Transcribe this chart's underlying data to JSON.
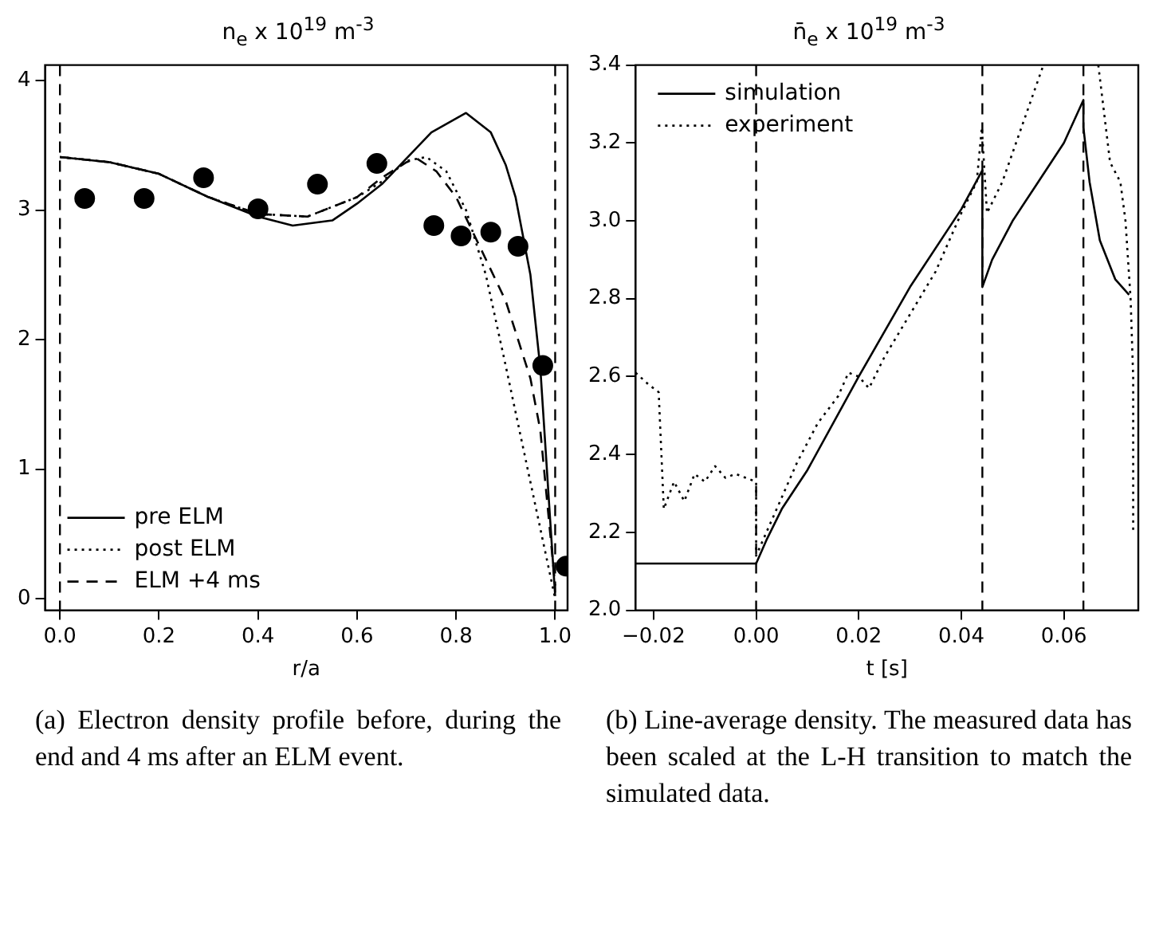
{
  "chart_data": [
    {
      "type": "line",
      "title": "n$_{e}$ x 10$^{19}$ m$^{-3}$",
      "xlabel": "r/a",
      "xlim": [
        -0.03,
        1.025
      ],
      "ylim": [
        -0.09,
        4.12
      ],
      "xticks": [
        {
          "value": 0,
          "label": "0.0"
        },
        {
          "value": 0.2,
          "label": "0.2"
        },
        {
          "value": 0.4,
          "label": "0.4"
        },
        {
          "value": 0.6,
          "label": "0.6"
        },
        {
          "value": 0.8,
          "label": "0.8"
        },
        {
          "value": 1,
          "label": "1.0"
        }
      ],
      "yticks": [
        0,
        1,
        2,
        3,
        4
      ],
      "grid": false,
      "legend": "bottom left",
      "ref_lines": [
        {
          "axis": "x",
          "value": 0,
          "line_style": "dashed",
          "color": "#000000"
        },
        {
          "axis": "x",
          "value": 1,
          "line_style": "dashed",
          "color": "#000000"
        }
      ],
      "series": [
        {
          "name": "pre ELM",
          "color": "#000000",
          "line_style": "solid",
          "x": [
            0,
            0.1,
            0.2,
            0.3,
            0.4,
            0.47,
            0.55,
            0.6,
            0.65,
            0.7,
            0.75,
            0.82,
            0.87,
            0.9,
            0.92,
            0.95,
            0.97,
            0.99,
            1.0
          ],
          "values": [
            3.41,
            3.37,
            3.28,
            3.1,
            2.95,
            2.88,
            2.92,
            3.05,
            3.2,
            3.4,
            3.6,
            3.75,
            3.6,
            3.35,
            3.1,
            2.5,
            1.78,
            0.6,
            0.02
          ]
        },
        {
          "name": "post ELM",
          "color": "#000000",
          "line_style": "dotted",
          "x": [
            0,
            0.1,
            0.2,
            0.3,
            0.4,
            0.5,
            0.6,
            0.65,
            0.7,
            0.74,
            0.78,
            0.82,
            0.86,
            0.9,
            0.95,
            1.0
          ],
          "values": [
            3.41,
            3.37,
            3.28,
            3.1,
            2.97,
            2.95,
            3.1,
            3.22,
            3.38,
            3.41,
            3.3,
            3.0,
            2.5,
            1.8,
            0.9,
            0.0
          ]
        },
        {
          "name": "ELM +4 ms",
          "color": "#000000",
          "line_style": "dashed",
          "x": [
            0,
            0.1,
            0.2,
            0.3,
            0.4,
            0.5,
            0.6,
            0.65,
            0.7,
            0.72,
            0.76,
            0.8,
            0.85,
            0.9,
            0.95,
            0.97,
            0.99,
            1.0
          ],
          "values": [
            3.41,
            3.37,
            3.28,
            3.1,
            2.97,
            2.95,
            3.1,
            3.25,
            3.37,
            3.4,
            3.3,
            3.1,
            2.7,
            2.3,
            1.7,
            1.3,
            0.5,
            0.1
          ]
        },
        {
          "type": "scatter",
          "color": "#000000",
          "marker": "circle",
          "x": [
            0.05,
            0.17,
            0.29,
            0.4,
            0.52,
            0.64,
            0.755,
            0.81,
            0.87,
            0.925,
            0.975,
            1.022
          ],
          "values": [
            3.09,
            3.09,
            3.25,
            3.01,
            3.2,
            3.36,
            2.88,
            2.8,
            2.83,
            2.72,
            1.8,
            0.25
          ]
        }
      ],
      "annotations": [
        "(a) Electron density profile before, during the end and 4 ms after an ELM event."
      ]
    },
    {
      "type": "line",
      "title": "n̄$_{e}$ x 10$^{19}$ m$^{-3}$",
      "xlabel": "t [s]",
      "xlim": [
        -0.0235,
        0.0745
      ],
      "ylim": [
        2.0,
        3.4
      ],
      "xticks": [
        {
          "value": -0.02,
          "label": "−0.02"
        },
        {
          "value": 0,
          "label": "0.00"
        },
        {
          "value": 0.02,
          "label": "0.02"
        },
        {
          "value": 0.04,
          "label": "0.04"
        },
        {
          "value": 0.06,
          "label": "0.06"
        }
      ],
      "yticks": [
        {
          "value": 2.0,
          "label": "2.0"
        },
        {
          "value": 2.2,
          "label": "2.2"
        },
        {
          "value": 2.4,
          "label": "2.4"
        },
        {
          "value": 2.6,
          "label": "2.6"
        },
        {
          "value": 2.8,
          "label": "2.8"
        },
        {
          "value": 3.0,
          "label": "3.0"
        },
        {
          "value": 3.2,
          "label": "3.2"
        },
        {
          "value": 3.4,
          "label": "3.4"
        }
      ],
      "grid": false,
      "legend": "top left",
      "ref_lines": [
        {
          "axis": "x",
          "value": 0,
          "line_style": "dashed",
          "color": "#000000"
        },
        {
          "axis": "x",
          "value": 0.0441,
          "line_style": "dashed",
          "color": "#000000"
        },
        {
          "axis": "x",
          "value": 0.0638,
          "line_style": "dashed",
          "color": "#000000"
        }
      ],
      "series": [
        {
          "name": "simulation",
          "color": "#000000",
          "line_style": "solid",
          "x": [
            -0.0235,
            0,
            0.002,
            0.005,
            0.01,
            0.02,
            0.03,
            0.04,
            0.0441,
            0.0441,
            0.046,
            0.05,
            0.055,
            0.06,
            0.0638,
            0.0638,
            0.065,
            0.067,
            0.07,
            0.0727
          ],
          "values": [
            2.12,
            2.12,
            2.18,
            2.26,
            2.36,
            2.6,
            2.83,
            3.03,
            3.13,
            2.83,
            2.9,
            3.0,
            3.1,
            3.2,
            3.31,
            3.24,
            3.1,
            2.95,
            2.85,
            2.81
          ]
        },
        {
          "name": "experiment",
          "color": "#000000",
          "line_style": "dotted",
          "x": [
            -0.0235,
            -0.021,
            -0.019,
            -0.018,
            -0.016,
            -0.014,
            -0.012,
            -0.01,
            -0.008,
            -0.006,
            -0.004,
            -0.002,
            0,
            0,
            0.004,
            0.008,
            0.012,
            0.016,
            0.018,
            0.02,
            0.022,
            0.025,
            0.03,
            0.035,
            0.04,
            0.043,
            0.044,
            0.045,
            0.048,
            0.052,
            0.056,
            0.06,
            0.0667,
            0.069,
            0.071,
            0.072,
            0.073,
            0.0735,
            0.0735
          ],
          "values": [
            2.61,
            2.58,
            2.56,
            2.26,
            2.33,
            2.28,
            2.35,
            2.33,
            2.37,
            2.34,
            2.35,
            2.34,
            2.33,
            2.14,
            2.26,
            2.38,
            2.48,
            2.55,
            2.61,
            2.6,
            2.57,
            2.65,
            2.76,
            2.87,
            3.02,
            3.1,
            3.24,
            3.02,
            3.1,
            3.25,
            3.4,
            null,
            3.4,
            3.15,
            3.1,
            3.0,
            2.8,
            2.6,
            2.2
          ]
        }
      ],
      "annotations": [
        "(b) Line-average density. The measured data has been scaled at the L-H transition to match the simulated data."
      ]
    }
  ]
}
